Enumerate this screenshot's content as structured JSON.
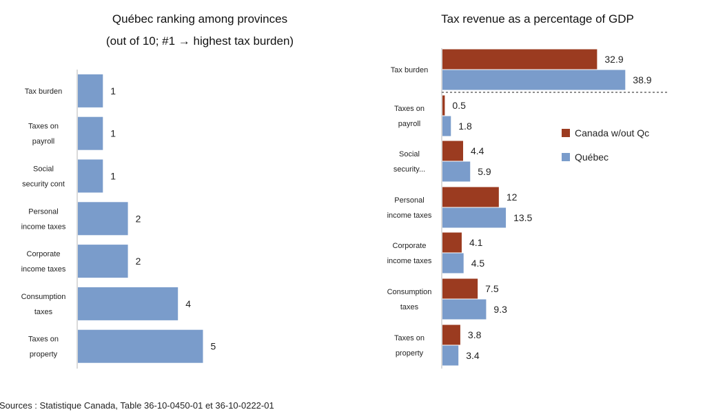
{
  "chart_data": [
    {
      "type": "bar",
      "orientation": "horizontal",
      "title": "Québec ranking among provinces",
      "subtitle": "(out of 10; #1 → highest tax burden)",
      "categories": [
        [
          "Tax burden"
        ],
        [
          "Taxes on",
          "payroll"
        ],
        [
          "Social",
          "security cont"
        ],
        [
          "Personal",
          "income taxes"
        ],
        [
          "Corporate",
          "income taxes"
        ],
        [
          "Consumption",
          "taxes"
        ],
        [
          "Taxes on",
          "property"
        ]
      ],
      "values": [
        1,
        1,
        1,
        2,
        2,
        4,
        5
      ],
      "color": "#7a9ccb",
      "xlim": [
        0,
        10
      ]
    },
    {
      "type": "bar",
      "orientation": "horizontal",
      "title": "Tax revenue as a percentage of GDP",
      "categories": [
        [
          "Tax burden"
        ],
        [
          "Taxes on",
          "payroll"
        ],
        [
          "Social",
          "security..."
        ],
        [
          "Personal",
          "income taxes"
        ],
        [
          "Corporate",
          "income taxes"
        ],
        [
          "Consumption",
          "taxes"
        ],
        [
          "Taxes on",
          "property"
        ]
      ],
      "series": [
        {
          "name": "Canada w/out Qc",
          "color": "#9b3b20",
          "values": [
            32.9,
            0.5,
            4.4,
            12,
            4.1,
            7.5,
            3.8
          ]
        },
        {
          "name": "Québec",
          "color": "#7a9ccb",
          "values": [
            38.9,
            1.8,
            5.9,
            13.5,
            4.5,
            9.3,
            3.4
          ]
        }
      ],
      "legend": "right",
      "xlim": [
        0,
        40
      ]
    }
  ],
  "source_note": "Sources : Statistique Canada, Table 36-10-0450-01 et 36-10-0222-01"
}
